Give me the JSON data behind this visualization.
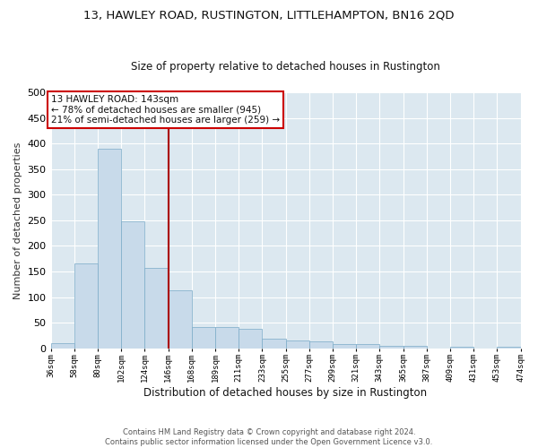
{
  "title": "13, HAWLEY ROAD, RUSTINGTON, LITTLEHAMPTON, BN16 2QD",
  "subtitle": "Size of property relative to detached houses in Rustington",
  "xlabel": "Distribution of detached houses by size in Rustington",
  "ylabel": "Number of detached properties",
  "bar_values": [
    10,
    165,
    390,
    248,
    157,
    113,
    42,
    42,
    38,
    18,
    15,
    13,
    8,
    8,
    5,
    4,
    0,
    3,
    0,
    3
  ],
  "bar_labels": [
    "36sqm",
    "58sqm",
    "80sqm",
    "102sqm",
    "124sqm",
    "146sqm",
    "168sqm",
    "189sqm",
    "211sqm",
    "233sqm",
    "255sqm",
    "277sqm",
    "299sqm",
    "321sqm",
    "343sqm",
    "365sqm",
    "387sqm",
    "409sqm",
    "431sqm",
    "453sqm",
    "474sqm"
  ],
  "bar_color": "#c8daea",
  "bar_edge_color": "#7aaac8",
  "annotation_text": "13 HAWLEY ROAD: 143sqm\n← 78% of detached houses are smaller (945)\n21% of semi-detached houses are larger (259) →",
  "annotation_box_facecolor": "#ffffff",
  "annotation_box_edgecolor": "#cc0000",
  "ylim": [
    0,
    500
  ],
  "yticks": [
    0,
    50,
    100,
    150,
    200,
    250,
    300,
    350,
    400,
    450,
    500
  ],
  "background_color": "#dce8f0",
  "grid_color": "#ffffff",
  "footer_line1": "Contains HM Land Registry data © Crown copyright and database right 2024.",
  "footer_line2": "Contains public sector information licensed under the Open Government Licence v3.0.",
  "vline_color": "#aa0000",
  "vline_x": 4.5
}
